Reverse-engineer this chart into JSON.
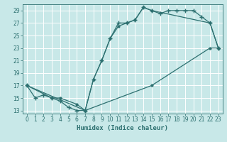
{
  "xlabel": "Humidex (Indice chaleur)",
  "bg_color": "#c8e8e8",
  "grid_color": "#b8d8d8",
  "line_color": "#2d7070",
  "xlim": [
    -0.5,
    23.5
  ],
  "ylim": [
    12.5,
    30.0
  ],
  "xticks": [
    0,
    1,
    2,
    3,
    4,
    5,
    6,
    7,
    8,
    9,
    10,
    11,
    12,
    13,
    14,
    15,
    16,
    17,
    18,
    19,
    20,
    21,
    22,
    23
  ],
  "yticks": [
    13,
    15,
    17,
    19,
    21,
    23,
    25,
    27,
    29
  ],
  "line1_x": [
    0,
    1,
    2,
    3,
    4,
    5,
    6,
    7,
    8,
    9,
    10,
    11,
    12,
    13,
    14,
    15,
    16,
    17,
    18,
    19,
    20,
    21,
    22,
    23
  ],
  "line1_y": [
    17,
    15,
    15.5,
    15,
    14.5,
    13.5,
    13,
    13,
    18,
    21,
    24.5,
    27,
    27,
    27.5,
    29.5,
    29,
    28.5,
    29,
    29,
    29,
    29,
    28,
    27,
    23
  ],
  "line2_x": [
    0,
    3,
    4,
    6,
    7,
    8,
    9,
    10,
    11,
    12,
    13,
    14,
    15,
    22,
    23
  ],
  "line2_y": [
    17,
    15,
    15,
    14,
    13,
    18,
    21,
    24.5,
    26.5,
    27,
    27.5,
    29.5,
    29,
    27,
    23
  ],
  "line3_x": [
    0,
    7,
    15,
    22,
    23
  ],
  "line3_y": [
    17,
    13,
    17,
    23,
    23
  ]
}
